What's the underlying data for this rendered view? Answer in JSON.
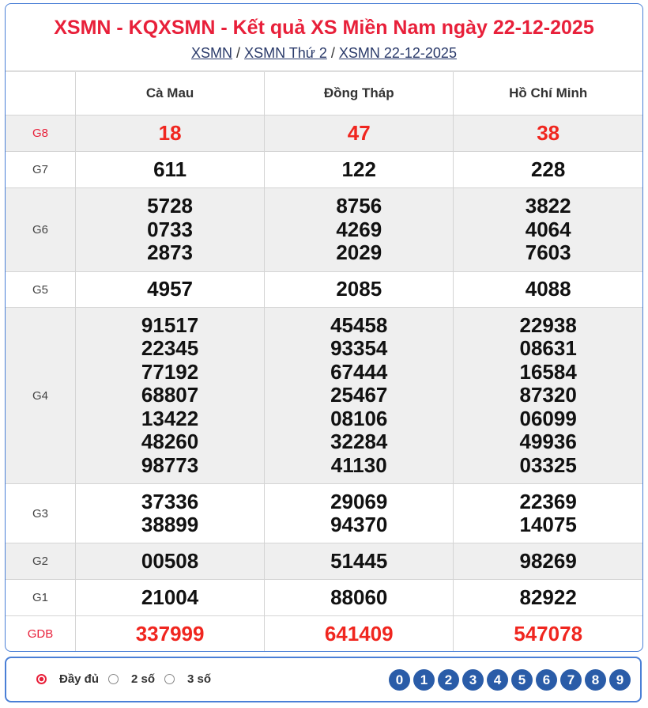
{
  "title": "XSMN - KQXSMN - Kết quả XS Miền Nam ngày 22-12-2025",
  "breadcrumb": [
    "XSMN",
    "XSMN Thứ 2",
    "XSMN 22-12-2025"
  ],
  "separator": "/",
  "provinces": [
    "Cà Mau",
    "Đồng Tháp",
    "Hồ Chí Minh"
  ],
  "rows": [
    {
      "label": "G8",
      "values": [
        [
          "18"
        ],
        [
          "47"
        ],
        [
          "38"
        ]
      ]
    },
    {
      "label": "G7",
      "values": [
        [
          "611"
        ],
        [
          "122"
        ],
        [
          "228"
        ]
      ]
    },
    {
      "label": "G6",
      "values": [
        [
          "5728",
          "0733",
          "2873"
        ],
        [
          "8756",
          "4269",
          "2029"
        ],
        [
          "3822",
          "4064",
          "7603"
        ]
      ]
    },
    {
      "label": "G5",
      "values": [
        [
          "4957"
        ],
        [
          "2085"
        ],
        [
          "4088"
        ]
      ]
    },
    {
      "label": "G4",
      "values": [
        [
          "91517",
          "22345",
          "77192",
          "68807",
          "13422",
          "48260",
          "98773"
        ],
        [
          "45458",
          "93354",
          "67444",
          "25467",
          "08106",
          "32284",
          "41130"
        ],
        [
          "22938",
          "08631",
          "16584",
          "87320",
          "06099",
          "49936",
          "03325"
        ]
      ]
    },
    {
      "label": "G3",
      "values": [
        [
          "37336",
          "38899"
        ],
        [
          "29069",
          "94370"
        ],
        [
          "22369",
          "14075"
        ]
      ]
    },
    {
      "label": "G2",
      "values": [
        [
          "00508"
        ],
        [
          "51445"
        ],
        [
          "98269"
        ]
      ]
    },
    {
      "label": "G1",
      "values": [
        [
          "21004"
        ],
        [
          "88060"
        ],
        [
          "82922"
        ]
      ]
    },
    {
      "label": "GDB",
      "values": [
        [
          "337999"
        ],
        [
          "641409"
        ],
        [
          "547078"
        ]
      ]
    }
  ],
  "options": [
    {
      "label": "Đầy đủ",
      "selected": true
    },
    {
      "label": "2 số",
      "selected": false
    },
    {
      "label": "3 số",
      "selected": false
    }
  ],
  "digits": [
    "0",
    "1",
    "2",
    "3",
    "4",
    "5",
    "6",
    "7",
    "8",
    "9"
  ],
  "colors": {
    "accent": "#e8203a",
    "prize_red": "#f0261f",
    "border": "#4a7fd6",
    "digit_bg": "#2a5ca8"
  }
}
